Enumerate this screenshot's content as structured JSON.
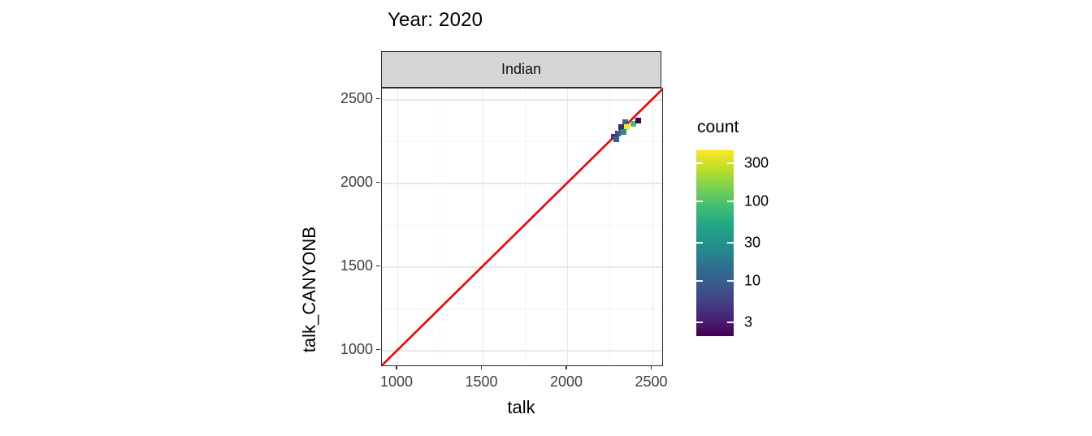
{
  "title": "Year: 2020",
  "facet": {
    "label": "Indian"
  },
  "axes": {
    "x": {
      "title": "talk",
      "ticks": [
        1000,
        1500,
        2000,
        2500
      ],
      "minor_ticks": [
        1250,
        1750,
        2250
      ]
    },
    "y": {
      "title": "talk_CANYONB",
      "ticks": [
        1000,
        1500,
        2000,
        2500
      ],
      "minor_ticks": [
        1250,
        1750,
        2250
      ]
    }
  },
  "legend": {
    "title": "count",
    "tick_values": [
      300,
      100,
      30,
      10,
      3
    ],
    "scale": "log10",
    "range": [
      2,
      440
    ],
    "viridis_colors": [
      "#440154",
      "#482475",
      "#414487",
      "#355f8d",
      "#2a788e",
      "#21918c",
      "#22a884",
      "#44bf70",
      "#7ad151",
      "#bddf26",
      "#fde725"
    ]
  },
  "chart_data": {
    "type": "heatmap",
    "subtype": "bin2d",
    "title": "Year: 2020",
    "facet": "Indian",
    "xlabel": "talk",
    "ylabel": "talk_CANYONB",
    "xlim": [
      909,
      2560
    ],
    "ylim": [
      909,
      2565
    ],
    "grid": "on",
    "legend_position": "right",
    "bin_size": 34,
    "abline": {
      "slope": 1,
      "intercept": 0,
      "color": "#f40000",
      "width": 2.6
    },
    "points": [
      {
        "x": 2340,
        "y": 2365,
        "count": 12,
        "color": "#31688e"
      },
      {
        "x": 2388,
        "y": 2355,
        "count": 80,
        "color": "#44bf70"
      },
      {
        "x": 2417,
        "y": 2374,
        "count": 2,
        "color": "#440154"
      },
      {
        "x": 2354,
        "y": 2336,
        "count": 350,
        "color": "#fde725"
      },
      {
        "x": 2316,
        "y": 2336,
        "count": 3,
        "color": "#482475"
      },
      {
        "x": 2335,
        "y": 2307,
        "count": 30,
        "color": "#21918c"
      },
      {
        "x": 2301,
        "y": 2297,
        "count": 9,
        "color": "#365c8d"
      },
      {
        "x": 2277,
        "y": 2278,
        "count": 3,
        "color": "#46327e"
      },
      {
        "x": 2292,
        "y": 2263,
        "count": 10,
        "color": "#33638d"
      }
    ]
  }
}
